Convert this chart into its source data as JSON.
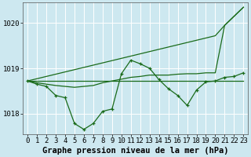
{
  "title": "Graphe pression niveau de la mer (hPa)",
  "bg_color": "#cde8f0",
  "grid_color": "#ffffff",
  "line_color": "#1a6b1a",
  "ylim": [
    1017.55,
    1020.45
  ],
  "yticks": [
    1018,
    1019,
    1020
  ],
  "x_labels": [
    "0",
    "1",
    "2",
    "3",
    "4",
    "5",
    "6",
    "7",
    "8",
    "9",
    "10",
    "11",
    "12",
    "13",
    "14",
    "15",
    "16",
    "17",
    "18",
    "19",
    "20",
    "21",
    "22",
    "23"
  ],
  "series_diagonal": [
    1018.72,
    1018.77,
    1018.82,
    1018.87,
    1018.92,
    1018.97,
    1019.02,
    1019.07,
    1019.12,
    1019.17,
    1019.22,
    1019.27,
    1019.32,
    1019.37,
    1019.42,
    1019.47,
    1019.52,
    1019.57,
    1019.62,
    1019.67,
    1019.72,
    1019.95,
    1020.15,
    1020.35
  ],
  "series_main": [
    1018.72,
    1018.65,
    1018.6,
    1018.4,
    1018.35,
    1017.78,
    1017.65,
    1017.78,
    1018.05,
    1018.1,
    1018.88,
    1019.18,
    1019.1,
    1019.0,
    1018.75,
    1018.55,
    1018.4,
    1018.18,
    1018.52,
    1018.7,
    1018.72,
    1018.8,
    1018.82,
    1018.9
  ],
  "series_flat1": [
    1018.72,
    1018.72,
    1018.72,
    1018.72,
    1018.72,
    1018.72,
    1018.72,
    1018.72,
    1018.72,
    1018.72,
    1018.72,
    1018.72,
    1018.72,
    1018.72,
    1018.72,
    1018.72,
    1018.72,
    1018.72,
    1018.72,
    1018.72,
    1018.72,
    1018.72,
    1018.72,
    1018.72
  ],
  "series_rise": [
    1018.72,
    1018.68,
    1018.65,
    1018.62,
    1018.6,
    1018.58,
    1018.6,
    1018.62,
    1018.68,
    1018.72,
    1018.76,
    1018.8,
    1018.82,
    1018.85,
    1018.85,
    1018.85,
    1018.87,
    1018.88,
    1018.88,
    1018.9,
    1018.9,
    1019.95,
    1020.15,
    1020.35
  ],
  "title_fontsize": 7.5,
  "tick_fontsize": 6.5
}
